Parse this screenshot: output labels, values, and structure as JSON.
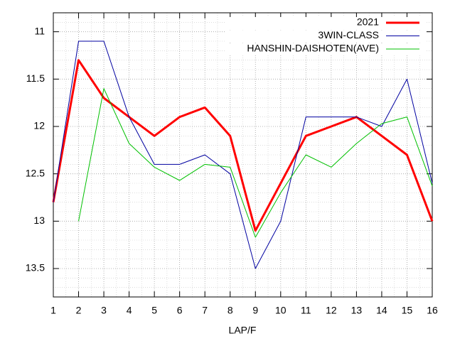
{
  "chart_data": {
    "type": "line",
    "xlabel": "LAP/F",
    "x": [
      1,
      2,
      3,
      4,
      5,
      6,
      7,
      8,
      9,
      10,
      11,
      12,
      13,
      14,
      15,
      16
    ],
    "xlim": [
      1,
      16
    ],
    "xticks": [
      1,
      2,
      3,
      4,
      5,
      6,
      7,
      8,
      9,
      10,
      11,
      12,
      13,
      14,
      15,
      16
    ],
    "ylim": [
      10.8,
      13.8
    ],
    "y_reversed": true,
    "yticks": [
      11,
      11.5,
      12,
      12.5,
      13,
      13.5
    ],
    "grid": true,
    "legend": "top-right",
    "series": [
      {
        "name": "2021",
        "color": "#ff0000",
        "width": 3,
        "values": [
          12.8,
          11.3,
          11.7,
          11.9,
          12.1,
          11.9,
          11.8,
          12.1,
          13.1,
          12.6,
          12.1,
          12.0,
          11.9,
          12.1,
          12.3,
          13.0
        ]
      },
      {
        "name": "3WIN-CLASS",
        "color": "#0000a0",
        "width": 1,
        "values": [
          12.8,
          11.1,
          11.1,
          11.9,
          12.4,
          12.4,
          12.3,
          12.5,
          13.5,
          13.0,
          11.9,
          11.9,
          11.9,
          12.0,
          11.5,
          12.6
        ]
      },
      {
        "name": "HANSHIN-DAISHOTEN(AVE)",
        "color": "#00c000",
        "width": 1,
        "values": [
          null,
          13.0,
          11.6,
          12.18,
          12.43,
          12.57,
          12.4,
          12.43,
          13.17,
          12.7,
          12.3,
          12.43,
          12.18,
          11.97,
          11.9,
          12.63
        ]
      }
    ]
  }
}
